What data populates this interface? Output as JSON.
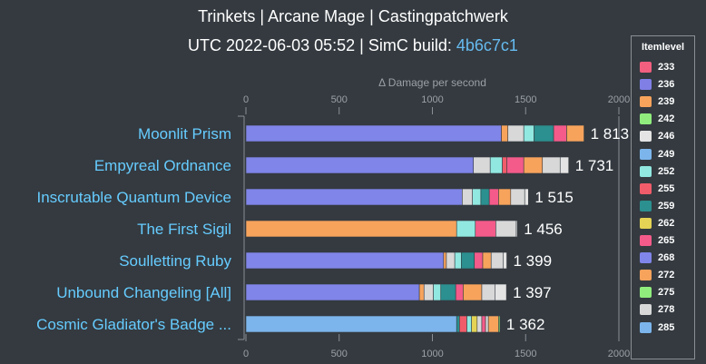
{
  "title": "Trinkets | Arcane Mage | Castingpatchwerk",
  "subtitle": {
    "prefix": "UTC 2022-06-03 05:52 | SimC build: ",
    "build": "4b6c7c1"
  },
  "colors": {
    "background": "#343a40",
    "category_label": "#66ccff",
    "axis": "#8a8f94",
    "build_link": "#66bbf0"
  },
  "chart_data": {
    "type": "bar",
    "orientation": "horizontal",
    "stacked": true,
    "xlabel": "Δ Damage per second",
    "xlim": [
      0,
      2000
    ],
    "xticks": [
      0,
      500,
      1000,
      1500,
      2000
    ],
    "grid": false,
    "legend": {
      "title": "Itemlevel",
      "placement": "right"
    },
    "series_meta": [
      {
        "name": "233",
        "color": "#f25f7f"
      },
      {
        "name": "236",
        "color": "#7f7fe6"
      },
      {
        "name": "239",
        "color": "#f7a35c"
      },
      {
        "name": "242",
        "color": "#90ed7d"
      },
      {
        "name": "246",
        "color": "#e4e4e4"
      },
      {
        "name": "249",
        "color": "#7cb5ec"
      },
      {
        "name": "252",
        "color": "#91e8e1"
      },
      {
        "name": "255",
        "color": "#f15c6a"
      },
      {
        "name": "259",
        "color": "#2b908f"
      },
      {
        "name": "262",
        "color": "#e4d354"
      },
      {
        "name": "265",
        "color": "#f45b8a"
      },
      {
        "name": "268",
        "color": "#8085e9"
      },
      {
        "name": "272",
        "color": "#f7a35c"
      },
      {
        "name": "275",
        "color": "#90ed7d"
      },
      {
        "name": "278",
        "color": "#d8d8d8"
      },
      {
        "name": "285",
        "color": "#7cb5ec"
      }
    ],
    "categories": [
      {
        "label": "Moonlit Prism",
        "total": 1813,
        "total_label": "1 813",
        "segments": [
          {
            "ilvl": "268",
            "value": 1370
          },
          {
            "ilvl": "272",
            "value": 35
          },
          {
            "ilvl": "278",
            "value": 85
          },
          {
            "ilvl": "252",
            "value": 55
          },
          {
            "ilvl": "259",
            "value": 105
          },
          {
            "ilvl": "265",
            "value": 70
          },
          {
            "ilvl": "272",
            "value": 93
          }
        ]
      },
      {
        "label": "Empyreal Ordnance",
        "total": 1731,
        "total_label": "1 731",
        "segments": [
          {
            "ilvl": "268",
            "value": 1220
          },
          {
            "ilvl": "278",
            "value": 90
          },
          {
            "ilvl": "252",
            "value": 65
          },
          {
            "ilvl": "255",
            "value": 25
          },
          {
            "ilvl": "265",
            "value": 90
          },
          {
            "ilvl": "272",
            "value": 100
          },
          {
            "ilvl": "278",
            "value": 95
          },
          {
            "ilvl": "246",
            "value": 46
          }
        ]
      },
      {
        "label": "Inscrutable Quantum Device",
        "total": 1515,
        "total_label": "1 515",
        "segments": [
          {
            "ilvl": "268",
            "value": 1160
          },
          {
            "ilvl": "278",
            "value": 55
          },
          {
            "ilvl": "252",
            "value": 45
          },
          {
            "ilvl": "259",
            "value": 45
          },
          {
            "ilvl": "265",
            "value": 50
          },
          {
            "ilvl": "272",
            "value": 65
          },
          {
            "ilvl": "278",
            "value": 75
          },
          {
            "ilvl": "246",
            "value": 20
          }
        ]
      },
      {
        "label": "The First Sigil",
        "total": 1456,
        "total_label": "1 456",
        "segments": [
          {
            "ilvl": "272",
            "value": 1130
          },
          {
            "ilvl": "252",
            "value": 100
          },
          {
            "ilvl": "265",
            "value": 110
          },
          {
            "ilvl": "278",
            "value": 110
          },
          {
            "ilvl": "246",
            "value": 6
          }
        ]
      },
      {
        "label": "Soulletting Ruby",
        "total": 1399,
        "total_label": "1 399",
        "segments": [
          {
            "ilvl": "268",
            "value": 1060
          },
          {
            "ilvl": "272",
            "value": 15
          },
          {
            "ilvl": "278",
            "value": 45
          },
          {
            "ilvl": "252",
            "value": 35
          },
          {
            "ilvl": "259",
            "value": 70
          },
          {
            "ilvl": "265",
            "value": 45
          },
          {
            "ilvl": "272",
            "value": 45
          },
          {
            "ilvl": "278",
            "value": 64
          },
          {
            "ilvl": "246",
            "value": 20
          }
        ]
      },
      {
        "label": "Unbound Changeling [All]",
        "total": 1397,
        "total_label": "1 397",
        "segments": [
          {
            "ilvl": "268",
            "value": 930
          },
          {
            "ilvl": "272",
            "value": 25
          },
          {
            "ilvl": "278",
            "value": 50
          },
          {
            "ilvl": "252",
            "value": 40
          },
          {
            "ilvl": "259",
            "value": 80
          },
          {
            "ilvl": "265",
            "value": 40
          },
          {
            "ilvl": "272",
            "value": 100
          },
          {
            "ilvl": "278",
            "value": 70
          },
          {
            "ilvl": "246",
            "value": 62
          }
        ]
      },
      {
        "label": "Cosmic Gladiator's Badge ...",
        "total": 1362,
        "total_label": "1 362",
        "segments": [
          {
            "ilvl": "285",
            "value": 1130
          },
          {
            "ilvl": "259",
            "value": 15
          },
          {
            "ilvl": "255",
            "value": 40
          },
          {
            "ilvl": "252",
            "value": 25
          },
          {
            "ilvl": "262",
            "value": 30
          },
          {
            "ilvl": "278",
            "value": 25
          },
          {
            "ilvl": "265",
            "value": 20
          },
          {
            "ilvl": "278",
            "value": 15
          },
          {
            "ilvl": "272",
            "value": 55
          },
          {
            "ilvl": "242",
            "value": 7
          }
        ]
      }
    ]
  }
}
